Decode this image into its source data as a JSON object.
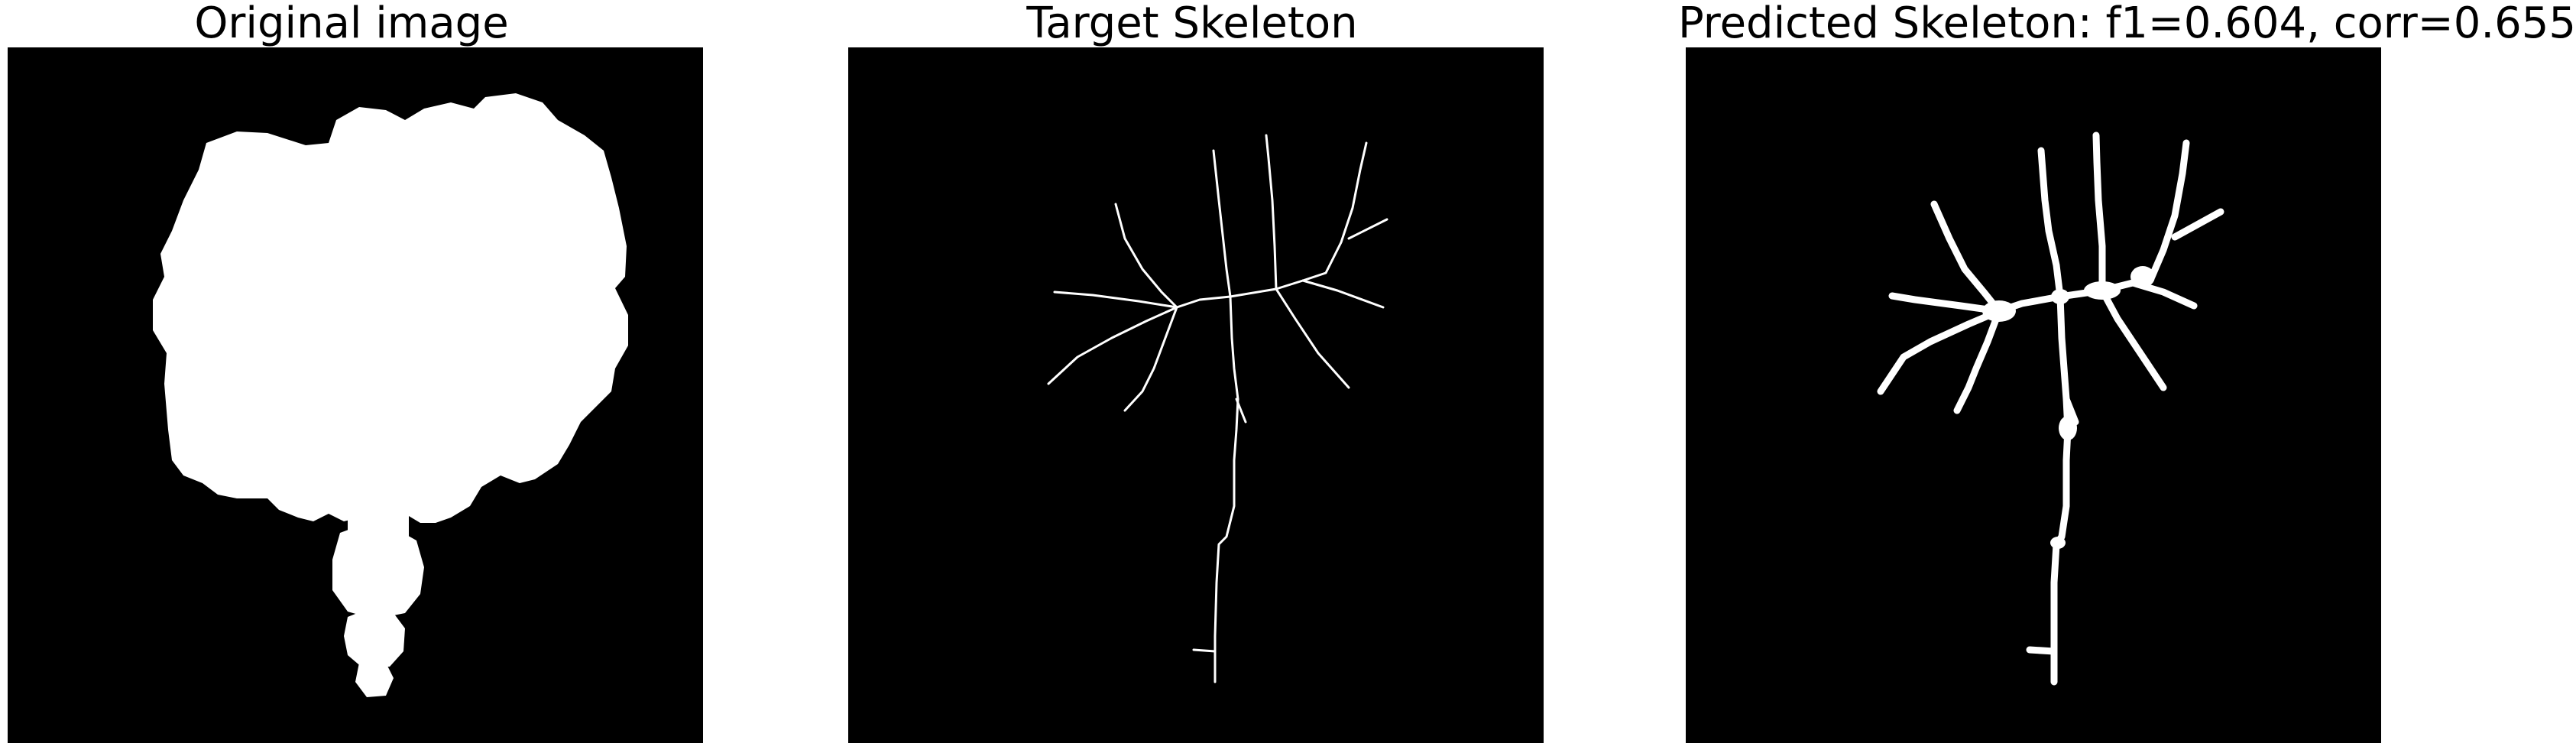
{
  "figure": {
    "background_color": "#ffffff",
    "image_background_color": "#000000",
    "foreground_color": "#ffffff"
  },
  "panels": [
    {
      "title": "Original image",
      "content": "binary blob mask"
    },
    {
      "title": "Target Skeleton",
      "content": "thin skeleton lines"
    },
    {
      "title": "Predicted Skeleton: f1=0.604, corr=0.655",
      "content": "thick predicted skeleton lines"
    }
  ]
}
